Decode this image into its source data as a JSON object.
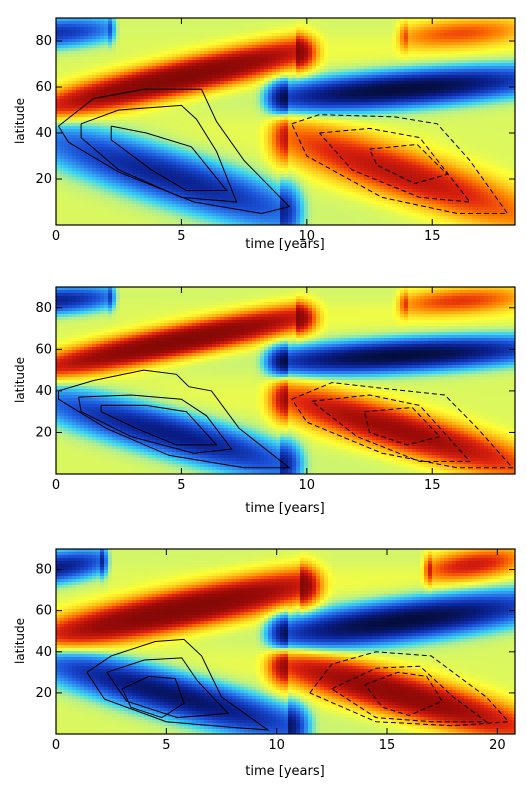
{
  "chart_data": [
    {
      "type": "heatmap",
      "xlabel": "time [years]",
      "ylabel": "latitude",
      "xlim": [
        0,
        18.3
      ],
      "ylim": [
        0,
        90
      ],
      "xticks": [
        0,
        5,
        10,
        15
      ],
      "yticks": [
        20,
        40,
        60,
        80
      ],
      "colormap": [
        "#000000",
        "#0a1e8c",
        "#1a4fd6",
        "#2f8cf0",
        "#39d4f2",
        "#b7f08a",
        "#ffff33",
        "#ffc21a",
        "#ff7a00",
        "#e0240f",
        "#9e0b08",
        "#6e0704"
      ],
      "bands": [
        {
          "sign": 1,
          "a": 1.0,
          "t0": 0,
          "t1": 9.5,
          "lat0": 52,
          "lat1": 75,
          "w": 7
        },
        {
          "sign": -1,
          "a": 1.0,
          "t0": 9.2,
          "t1": 18.3,
          "lat0": 55,
          "lat1": 63,
          "w": 7
        },
        {
          "sign": -1,
          "a": 0.7,
          "t0": 0,
          "t1": 9.0,
          "lat0": 36,
          "lat1": 6,
          "w": 11
        },
        {
          "sign": 1,
          "a": 0.6,
          "t0": 9.3,
          "t1": 18.3,
          "lat0": 38,
          "lat1": 6,
          "w": 11
        },
        {
          "sign": -1,
          "a": 0.6,
          "t0": -2,
          "t1": 2,
          "lat0": 82,
          "lat1": 85,
          "w": 6
        },
        {
          "sign": 1,
          "a": 0.4,
          "t0": 14,
          "t1": 18.3,
          "lat0": 82,
          "lat1": 85,
          "w": 6
        }
      ],
      "contours_solid": [
        [
          [
            0.1,
            43
          ],
          [
            1.5,
            55
          ],
          [
            3.5,
            59
          ],
          [
            5.8,
            59
          ],
          [
            6.1,
            52
          ],
          [
            6.4,
            45
          ],
          [
            7.5,
            28
          ],
          [
            9.3,
            8
          ],
          [
            8.2,
            5
          ],
          [
            5.5,
            10
          ],
          [
            2.5,
            23
          ],
          [
            0.5,
            36
          ],
          [
            0.1,
            43
          ]
        ],
        [
          [
            1.0,
            44
          ],
          [
            2.5,
            50
          ],
          [
            5.0,
            52
          ],
          [
            5.6,
            46
          ],
          [
            6.4,
            32
          ],
          [
            7.2,
            10
          ],
          [
            5.0,
            12
          ],
          [
            2.5,
            24
          ],
          [
            1.0,
            38
          ],
          [
            1.0,
            44
          ]
        ],
        [
          [
            2.2,
            43
          ],
          [
            3.6,
            40
          ],
          [
            5.4,
            34
          ],
          [
            6.8,
            15
          ],
          [
            5.2,
            15
          ],
          [
            3.8,
            24
          ],
          [
            2.2,
            37
          ],
          [
            2.2,
            43
          ]
        ]
      ],
      "contours_dashed": [
        [
          [
            9.4,
            44
          ],
          [
            10.5,
            48
          ],
          [
            13.5,
            47
          ],
          [
            15.2,
            44
          ],
          [
            16.5,
            28
          ],
          [
            18.0,
            5
          ],
          [
            16.0,
            5
          ],
          [
            13.0,
            12
          ],
          [
            10.0,
            30
          ],
          [
            9.4,
            44
          ]
        ],
        [
          [
            10.5,
            40
          ],
          [
            12.5,
            42
          ],
          [
            14.5,
            38
          ],
          [
            16.5,
            10
          ],
          [
            14.5,
            12
          ],
          [
            11.8,
            24
          ],
          [
            10.5,
            40
          ]
        ],
        [
          [
            12.5,
            33
          ],
          [
            14.4,
            35
          ],
          [
            15.6,
            22
          ],
          [
            14.3,
            18
          ],
          [
            12.8,
            26
          ],
          [
            12.5,
            33
          ]
        ]
      ]
    },
    {
      "type": "heatmap",
      "xlabel": "time [years]",
      "ylabel": "latitude",
      "xlim": [
        0,
        18.3
      ],
      "ylim": [
        0,
        90
      ],
      "xticks": [
        0,
        5,
        10,
        15
      ],
      "yticks": [
        20,
        40,
        60,
        80
      ],
      "bands": [
        {
          "sign": 1,
          "a": 1.0,
          "t0": 0,
          "t1": 9.5,
          "lat0": 52,
          "lat1": 75,
          "w": 7
        },
        {
          "sign": -1,
          "a": 1.0,
          "t0": 9.2,
          "t1": 18.3,
          "lat0": 54,
          "lat1": 60,
          "w": 7
        },
        {
          "sign": -1,
          "a": 0.75,
          "t0": 0,
          "t1": 9.0,
          "lat0": 34,
          "lat1": 5,
          "w": 10
        },
        {
          "sign": 1,
          "a": 0.75,
          "t0": 9.3,
          "t1": 18.3,
          "lat0": 36,
          "lat1": 5,
          "w": 10
        },
        {
          "sign": -1,
          "a": 0.7,
          "t0": -2,
          "t1": 2,
          "lat0": 82,
          "lat1": 85,
          "w": 6
        },
        {
          "sign": 1,
          "a": 0.45,
          "t0": 14,
          "t1": 18.3,
          "lat0": 82,
          "lat1": 85,
          "w": 6
        }
      ],
      "contours_solid": [
        [
          [
            0.1,
            40
          ],
          [
            1.5,
            45
          ],
          [
            3.5,
            50
          ],
          [
            4.8,
            48
          ],
          [
            5.3,
            42
          ],
          [
            6.2,
            40
          ],
          [
            7.3,
            22
          ],
          [
            9.3,
            3
          ],
          [
            7.5,
            3
          ],
          [
            4.5,
            9
          ],
          [
            2.0,
            22
          ],
          [
            0.1,
            36
          ],
          [
            0.1,
            40
          ]
        ],
        [
          [
            0.9,
            37
          ],
          [
            3.0,
            38
          ],
          [
            5.0,
            36
          ],
          [
            6.0,
            28
          ],
          [
            7.0,
            12
          ],
          [
            5.5,
            10
          ],
          [
            3.0,
            18
          ],
          [
            1.0,
            30
          ],
          [
            0.9,
            37
          ]
        ],
        [
          [
            1.8,
            33
          ],
          [
            3.6,
            33
          ],
          [
            5.2,
            30
          ],
          [
            6.4,
            14
          ],
          [
            4.8,
            14
          ],
          [
            3.2,
            22
          ],
          [
            1.8,
            30
          ],
          [
            1.8,
            33
          ]
        ]
      ],
      "contours_dashed": [
        [
          [
            9.4,
            36
          ],
          [
            11.0,
            44
          ],
          [
            13.2,
            41
          ],
          [
            15.5,
            38
          ],
          [
            16.8,
            22
          ],
          [
            18.2,
            3
          ],
          [
            16.0,
            3
          ],
          [
            13.0,
            10
          ],
          [
            10.0,
            25
          ],
          [
            9.4,
            36
          ]
        ],
        [
          [
            10.2,
            35
          ],
          [
            12.5,
            38
          ],
          [
            14.5,
            33
          ],
          [
            16.5,
            6
          ],
          [
            14.5,
            6
          ],
          [
            12.0,
            18
          ],
          [
            10.2,
            35
          ]
        ],
        [
          [
            12.3,
            30
          ],
          [
            14.2,
            32
          ],
          [
            15.3,
            18
          ],
          [
            14.0,
            14
          ],
          [
            12.5,
            20
          ],
          [
            12.3,
            30
          ]
        ]
      ]
    },
    {
      "type": "heatmap",
      "xlabel": "time [years]",
      "ylabel": "latitude",
      "xlim": [
        0,
        20.8
      ],
      "ylim": [
        0,
        90
      ],
      "xticks": [
        0,
        5,
        10,
        15,
        20
      ],
      "yticks": [
        20,
        40,
        60,
        80
      ],
      "bands": [
        {
          "sign": 1,
          "a": 1.0,
          "t0": 0,
          "t1": 11.0,
          "lat0": 48,
          "lat1": 72,
          "w": 9
        },
        {
          "sign": -1,
          "a": 1.0,
          "t0": 10.5,
          "t1": 20.8,
          "lat0": 48,
          "lat1": 62,
          "w": 9
        },
        {
          "sign": -1,
          "a": 0.85,
          "t0": 0,
          "t1": 10.5,
          "lat0": 34,
          "lat1": 4,
          "w": 10
        },
        {
          "sign": 1,
          "a": 0.85,
          "t0": 10.5,
          "t1": 20.8,
          "lat0": 34,
          "lat1": 4,
          "w": 10
        },
        {
          "sign": -1,
          "a": 0.75,
          "t0": -2,
          "t1": 2,
          "lat0": 78,
          "lat1": 84,
          "w": 7
        },
        {
          "sign": 1,
          "a": 0.55,
          "t0": 17,
          "t1": 20.8,
          "lat0": 80,
          "lat1": 85,
          "w": 7
        }
      ],
      "contours_solid": [
        [
          [
            1.4,
            30
          ],
          [
            2.5,
            38
          ],
          [
            4.5,
            45
          ],
          [
            5.8,
            46
          ],
          [
            6.6,
            38
          ],
          [
            7.5,
            18
          ],
          [
            9.6,
            2
          ],
          [
            8.2,
            3
          ],
          [
            5.0,
            6
          ],
          [
            2.2,
            17
          ],
          [
            1.4,
            30
          ]
        ],
        [
          [
            2.3,
            30
          ],
          [
            4.0,
            36
          ],
          [
            5.7,
            37
          ],
          [
            6.4,
            26
          ],
          [
            7.8,
            10
          ],
          [
            5.5,
            8
          ],
          [
            3.2,
            16
          ],
          [
            2.3,
            30
          ]
        ],
        [
          [
            3.0,
            22
          ],
          [
            4.2,
            28
          ],
          [
            5.4,
            27
          ],
          [
            5.8,
            15
          ],
          [
            4.8,
            8
          ],
          [
            3.4,
            13
          ],
          [
            3.0,
            22
          ]
        ]
      ],
      "contours_dashed": [
        [
          [
            11.5,
            20
          ],
          [
            12.5,
            34
          ],
          [
            14.5,
            40
          ],
          [
            17.0,
            38
          ],
          [
            19.5,
            18
          ],
          [
            20.5,
            6
          ],
          [
            18.0,
            4
          ],
          [
            14.5,
            6
          ],
          [
            11.5,
            20
          ]
        ],
        [
          [
            12.5,
            22
          ],
          [
            14.5,
            32
          ],
          [
            16.5,
            33
          ],
          [
            18.0,
            18
          ],
          [
            19.5,
            6
          ],
          [
            17.0,
            6
          ],
          [
            14.5,
            8
          ],
          [
            12.5,
            22
          ]
        ],
        [
          [
            14.0,
            24
          ],
          [
            15.5,
            30
          ],
          [
            16.8,
            28
          ],
          [
            17.5,
            16
          ],
          [
            16.0,
            9
          ],
          [
            14.8,
            13
          ],
          [
            14.0,
            24
          ]
        ]
      ]
    }
  ]
}
